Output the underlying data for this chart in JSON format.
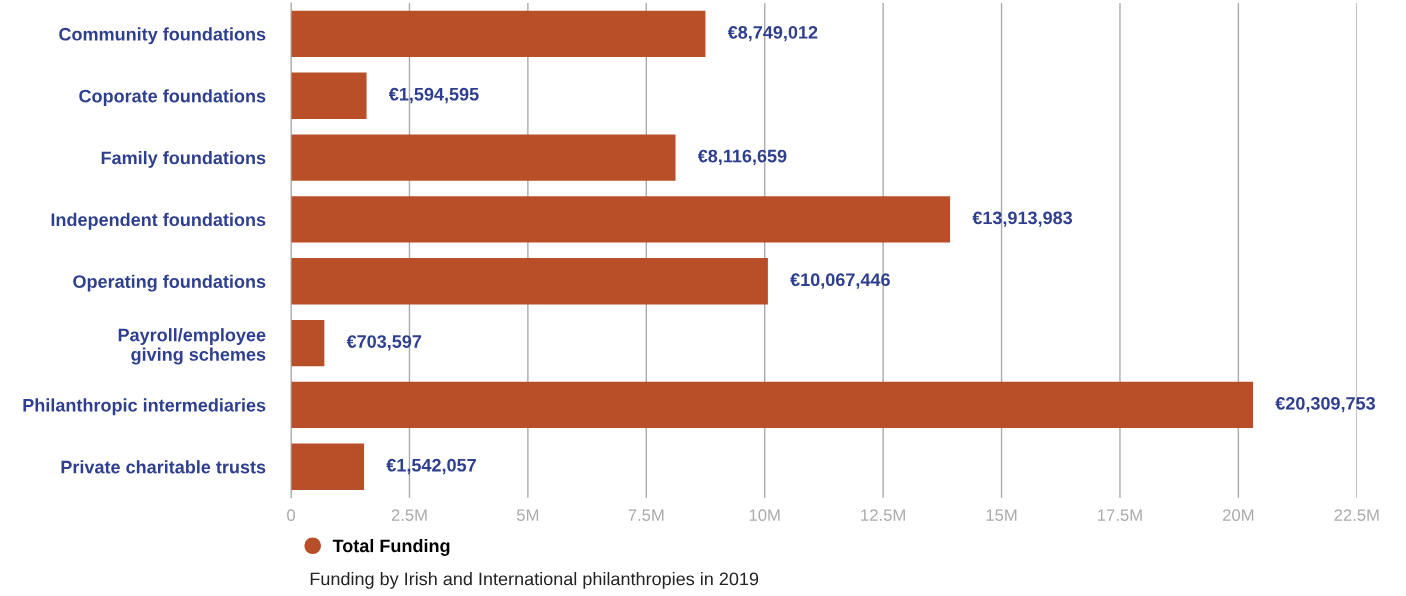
{
  "chart_data": {
    "type": "bar",
    "orientation": "horizontal",
    "categories": [
      "Community foundations",
      "Coporate foundations",
      "Family foundations",
      "Independent foundations",
      "Operating foundations",
      "Payroll/employee\ngiving schemes",
      "Philanthropic intermediaries",
      "Private charitable trusts"
    ],
    "series": [
      {
        "name": "Total Funding",
        "color": "#b84f28",
        "values": [
          8749012,
          1594595,
          8116659,
          13913983,
          10067446,
          703597,
          20309753,
          1542057
        ],
        "value_labels": [
          "€8,749,012",
          "€1,594,595",
          "€8,116,659",
          "€13,913,983",
          "€10,067,446",
          "€703,597",
          "€20,309,753",
          "€1,542,057"
        ]
      }
    ],
    "xlim": [
      0,
      22500000
    ],
    "xticks": [
      0,
      {
        "value": 2500000,
        "label": "2.5M"
      },
      {
        "value": 5000000,
        "label": "5M"
      },
      {
        "value": 7500000,
        "label": "7.5M"
      },
      {
        "value": 10000000,
        "label": "10M"
      },
      {
        "value": 12500000,
        "label": "12.5M"
      },
      {
        "value": 15000000,
        "label": "15M"
      },
      {
        "value": 17500000,
        "label": "17.5M"
      },
      {
        "value": 20000000,
        "label": "20M"
      },
      {
        "value": 22500000,
        "label": "22.5M"
      }
    ],
    "grid": "x",
    "legend": "bottom left",
    "annotations": [
      "Funding by Irish and International philanthropies in 2019"
    ]
  }
}
